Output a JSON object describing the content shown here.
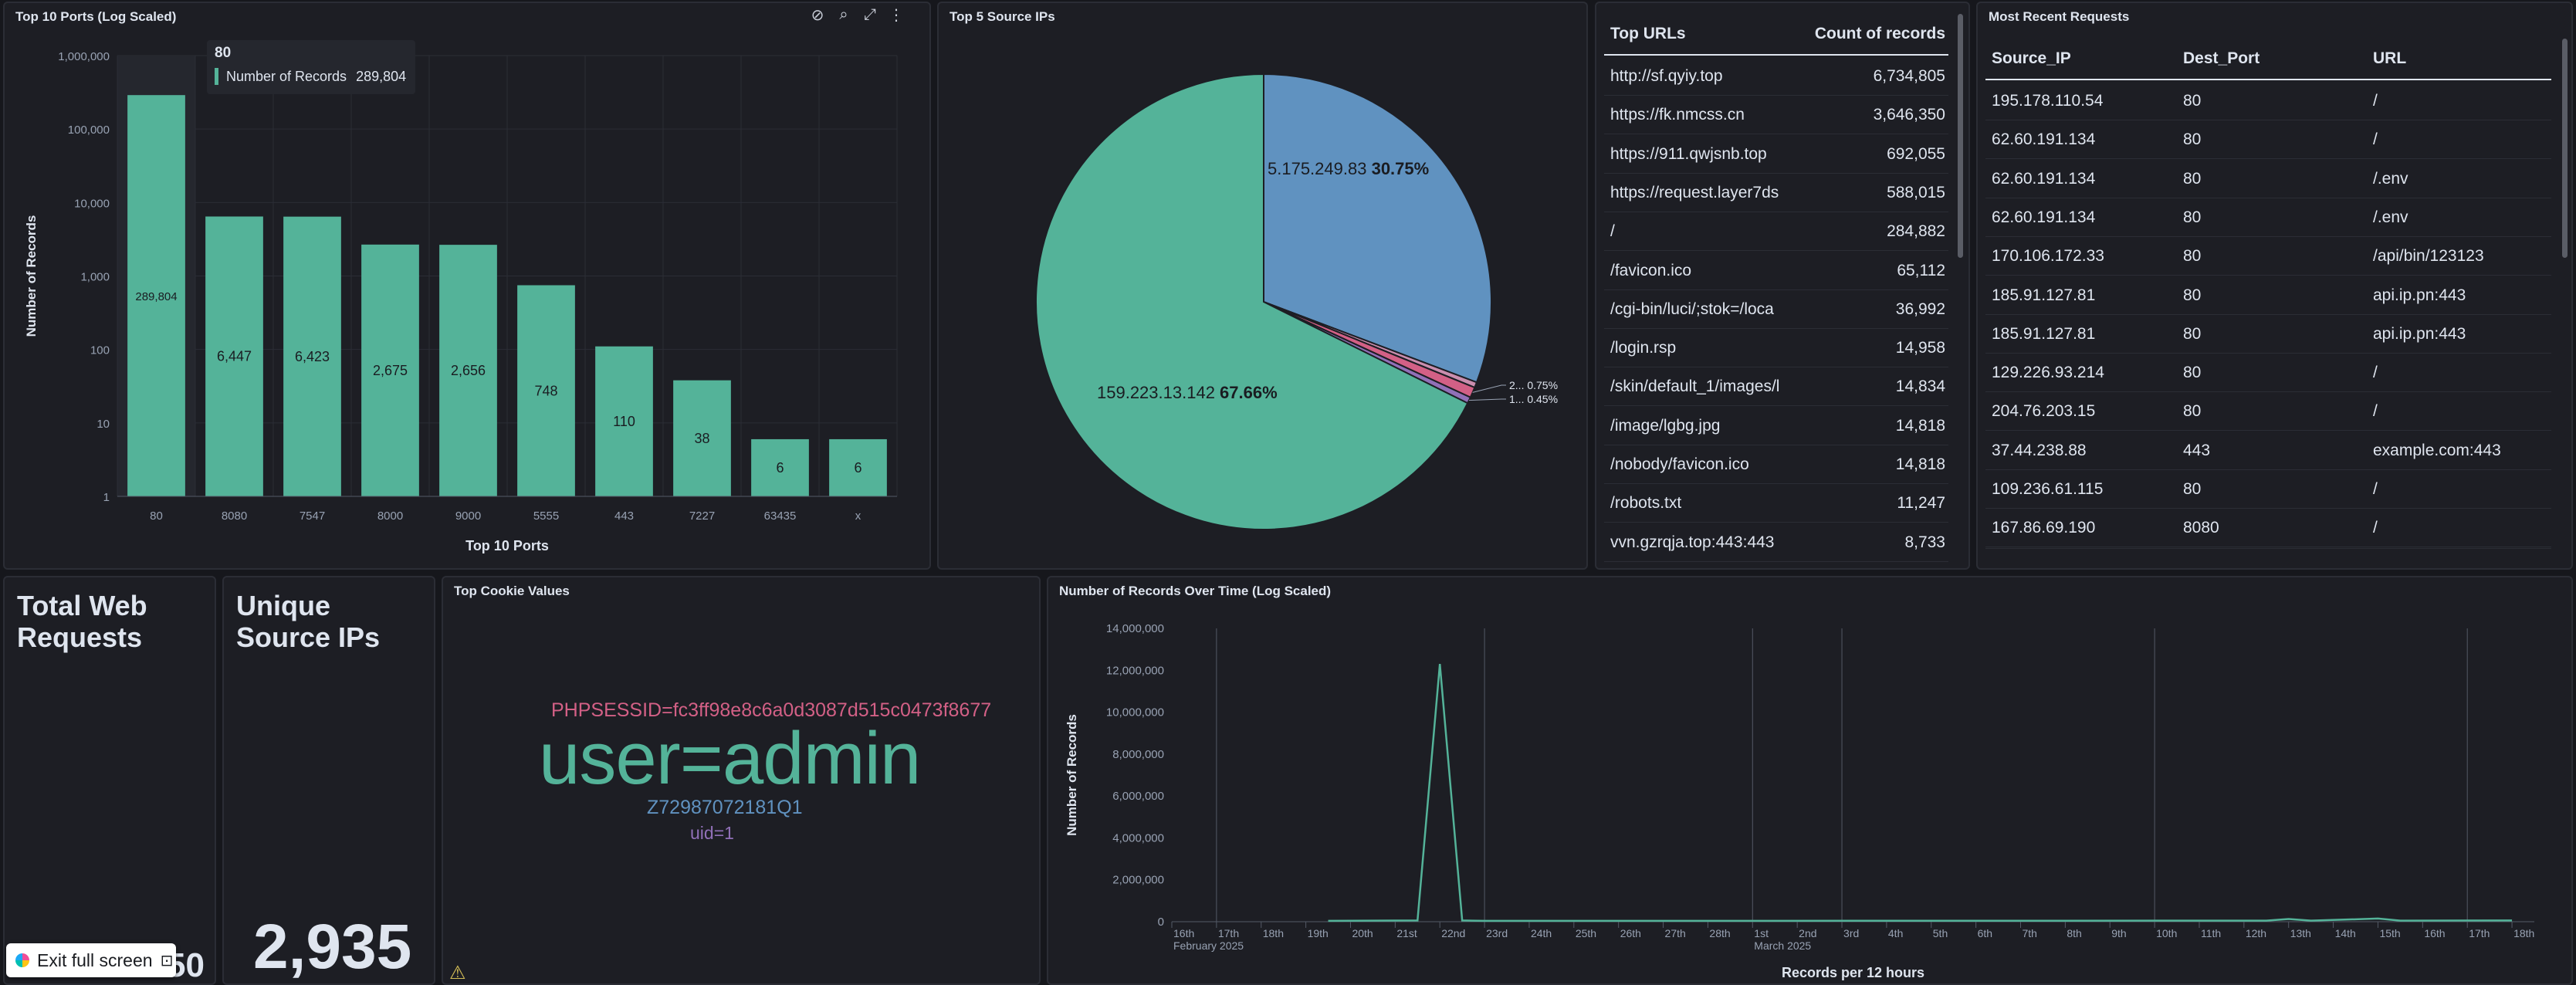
{
  "panels": {
    "ports_title": "Top 10 Ports (Log Scaled)",
    "source_ips_title": "Top 5 Source IPs",
    "recent_requests_title": "Most Recent Requests",
    "total_requests_title_line1": "Total Web",
    "total_requests_title_line2": "Requests",
    "total_requests_value": "50",
    "unique_ips_title_line1": "Unique",
    "unique_ips_title_line2": "Source IPs",
    "unique_ips_value": "2,935",
    "cookie_title": "Top Cookie Values",
    "time_title": "Number of Records Over Time (Log Scaled)"
  },
  "tooltip": {
    "header": "80",
    "label": "Number of Records",
    "value": "289,804"
  },
  "top_urls": {
    "header_url": "Top URLs",
    "header_count": "Count of records",
    "rows": [
      {
        "url": "http://sf.qyiy.top",
        "count": "6,734,805"
      },
      {
        "url": "https://fk.nmcss.cn",
        "count": "3,646,350"
      },
      {
        "url": "https://911.qwjsnb.top",
        "count": "692,055"
      },
      {
        "url": "https://request.layer7ds",
        "count": "588,015"
      },
      {
        "url": "/",
        "count": "284,882"
      },
      {
        "url": "/favicon.ico",
        "count": "65,112"
      },
      {
        "url": "/cgi-bin/luci/;stok=/loca",
        "count": "36,992"
      },
      {
        "url": "/login.rsp",
        "count": "14,958"
      },
      {
        "url": "/skin/default_1/images/l",
        "count": "14,834"
      },
      {
        "url": "/image/lgbg.jpg",
        "count": "14,818"
      },
      {
        "url": "/nobody/favicon.ico",
        "count": "14,818"
      },
      {
        "url": "/robots.txt",
        "count": "11,247"
      },
      {
        "url": "vvn.gzrqja.top:443:443",
        "count": "8,733"
      }
    ]
  },
  "recent_requests": {
    "headers": [
      "Source_IP",
      "Dest_Port",
      "URL"
    ],
    "rows": [
      [
        "195.178.110.54",
        "80",
        "/"
      ],
      [
        "62.60.191.134",
        "80",
        "/"
      ],
      [
        "62.60.191.134",
        "80",
        "/.env"
      ],
      [
        "62.60.191.134",
        "80",
        "/.env"
      ],
      [
        "170.106.172.33",
        "80",
        "/api/bin/123123"
      ],
      [
        "185.91.127.81",
        "80",
        "api.ip.pn:443"
      ],
      [
        "185.91.127.81",
        "80",
        "api.ip.pn:443"
      ],
      [
        "129.226.93.214",
        "80",
        "/"
      ],
      [
        "204.76.203.15",
        "80",
        "/"
      ],
      [
        "37.44.238.88",
        "443",
        "example.com:443"
      ],
      [
        "109.236.61.115",
        "80",
        "/"
      ],
      [
        "167.86.69.190",
        "8080",
        "/"
      ]
    ]
  },
  "cookies": {
    "line1": "PHPSESSID=fc3ff98e8c6a0d3087d515c0473f8677",
    "line2": "user=admin",
    "line3": "Z72987072181Q1",
    "line4": "uid=1",
    "colors": [
      "#d36086",
      "#54b399",
      "#6092c0",
      "#9170b8"
    ]
  },
  "exit_fullscreen": "Exit full screen",
  "chart_data": [
    {
      "id": "ports",
      "type": "bar",
      "scale": "log",
      "categories": [
        "80",
        "8080",
        "7547",
        "8000",
        "9000",
        "5555",
        "443",
        "7227",
        "63435",
        "x"
      ],
      "values": [
        289804,
        6447,
        6423,
        2675,
        2656,
        748,
        110,
        38,
        6,
        6
      ],
      "value_labels": [
        "289,804",
        "6,447",
        "6,423",
        "2,675",
        "2,656",
        "748",
        "110",
        "38",
        "6",
        "6"
      ],
      "xlabel": "Top 10 Ports",
      "ylabel": "Number of Records",
      "yticks": [
        "1",
        "10",
        "100",
        "1,000",
        "10,000",
        "100,000",
        "1,000,000"
      ],
      "ylim": [
        1,
        1000000
      ],
      "color": "#54b399"
    },
    {
      "id": "source_ips",
      "type": "pie",
      "slices": [
        {
          "label": "159.223.13.142",
          "percent_label": "67.66%",
          "value": 67.66,
          "color": "#54b399"
        },
        {
          "label": "5.175.249.83",
          "percent_label": "30.75%",
          "value": 30.75,
          "color": "#6092c0"
        },
        {
          "label": "2...",
          "percent_label": "0.75%",
          "value": 0.75,
          "color": "#d36086"
        },
        {
          "label": "1...",
          "percent_label": "0.45%",
          "value": 0.45,
          "color": "#9170b8"
        },
        {
          "label": "",
          "percent_label": "",
          "value": 0.39,
          "color": "#ca8eae"
        }
      ]
    },
    {
      "id": "records_over_time",
      "type": "line",
      "xlabel": "Records per 12 hours",
      "ylabel": "Number of Records",
      "yticks": [
        "0",
        "2,000,000",
        "4,000,000",
        "6,000,000",
        "8,000,000",
        "10,000,000",
        "12,000,000",
        "14,000,000"
      ],
      "ylim": [
        0,
        14000000
      ],
      "xticks": [
        "16th",
        "17th",
        "18th",
        "19th",
        "20th",
        "21st",
        "22nd",
        "23rd",
        "24th",
        "25th",
        "26th",
        "27th",
        "28th",
        "1st",
        "2nd",
        "3rd",
        "4th",
        "5th",
        "6th",
        "7th",
        "8th",
        "9th",
        "10th",
        "11th",
        "12th",
        "13th",
        "14th",
        "15th",
        "16th",
        "17th",
        "18th"
      ],
      "month_labels": [
        "February 2025",
        "March 2025"
      ],
      "x": [
        "Feb 19 12:00",
        "Feb 21 12:00",
        "Feb 22 00:00",
        "Feb 22 12:00",
        "Feb 23 00:00",
        "Mar 12 12:00",
        "Mar 13 00:00",
        "Mar 13 12:00",
        "Mar 15 00:00",
        "Mar 15 12:00",
        "Mar 18 00:00"
      ],
      "series": [
        {
          "values": [
            40000,
            60000,
            12300000,
            60000,
            40000,
            50000,
            130000,
            50000,
            150000,
            50000,
            60000
          ],
          "color": "#54b399"
        }
      ]
    }
  ]
}
